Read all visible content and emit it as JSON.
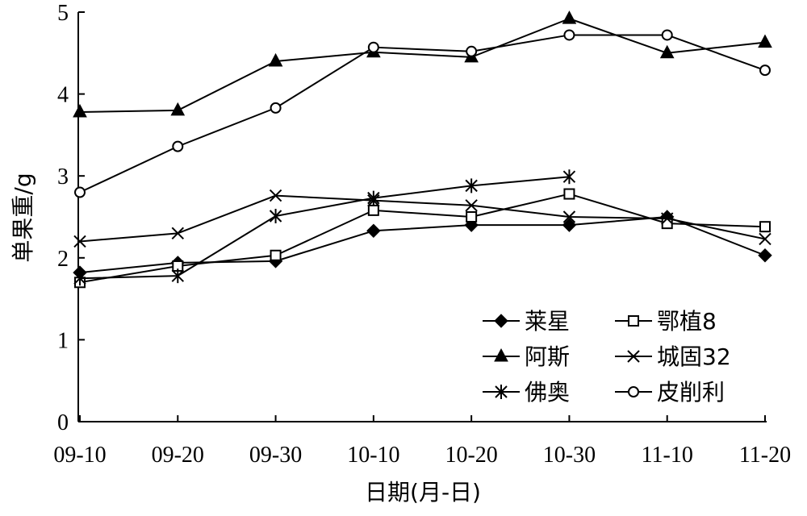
{
  "chart_data": {
    "type": "line",
    "title": "",
    "xlabel": "日期(月-日)",
    "ylabel": "单果重/g",
    "x": [
      "09-10",
      "09-20",
      "09-30",
      "10-10",
      "10-20",
      "10-30",
      "11-10",
      "11-20"
    ],
    "y_ticks": [
      "0",
      "1",
      "2",
      "3",
      "4",
      "5"
    ],
    "ylim": [
      0,
      5
    ],
    "grid": false,
    "legend_position": "bottom-right",
    "series": [
      {
        "name": "莱星",
        "marker": "filled-diamond",
        "values": [
          1.82,
          1.94,
          1.96,
          2.33,
          2.4,
          2.4,
          2.5,
          2.03
        ]
      },
      {
        "name": "鄂植8",
        "marker": "open-square",
        "values": [
          1.7,
          1.9,
          2.03,
          2.58,
          2.5,
          2.78,
          2.42,
          2.38
        ]
      },
      {
        "name": "阿斯",
        "marker": "filled-triangle",
        "values": [
          3.78,
          3.8,
          4.4,
          4.51,
          4.45,
          4.92,
          4.5,
          4.63
        ]
      },
      {
        "name": "城固32",
        "marker": "x-cross",
        "values": [
          2.2,
          2.3,
          2.76,
          2.7,
          2.64,
          2.5,
          2.48,
          2.23
        ]
      },
      {
        "name": "佛奥",
        "marker": "asterisk",
        "values": [
          1.75,
          1.78,
          2.51,
          2.73,
          2.88,
          2.99,
          null,
          null
        ]
      },
      {
        "name": "皮削利",
        "marker": "open-circle",
        "values": [
          2.8,
          3.36,
          3.83,
          4.57,
          4.52,
          4.72,
          4.72,
          4.29
        ]
      }
    ]
  }
}
